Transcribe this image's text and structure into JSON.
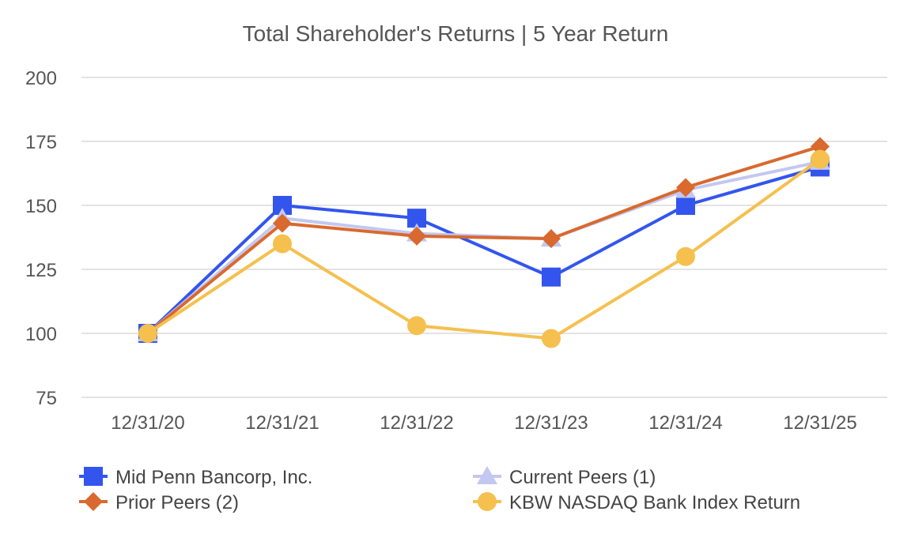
{
  "chart_data": {
    "type": "line",
    "title": "Total Shareholder's Returns | 5 Year Return",
    "categories": [
      "12/31/20",
      "12/31/21",
      "12/31/22",
      "12/31/23",
      "12/31/24",
      "12/31/25"
    ],
    "ylim": [
      75,
      200
    ],
    "yticks": [
      "75",
      "100",
      "125",
      "150",
      "175",
      "200"
    ],
    "grid": true,
    "legend_position": "bottom",
    "series": [
      {
        "name": "Mid Penn Bancorp, Inc.",
        "values": [
          100,
          150,
          145,
          122,
          150,
          165
        ],
        "color": "#3355ee",
        "marker": "square"
      },
      {
        "name": "Current Peers (1)",
        "values": [
          100,
          145,
          139,
          137,
          156,
          167
        ],
        "color": "#c2c8f0",
        "marker": "triangle"
      },
      {
        "name": "Prior Peers (2)",
        "values": [
          100,
          143,
          138,
          137,
          157,
          173
        ],
        "color": "#d9692e",
        "marker": "diamond"
      },
      {
        "name": "KBW NASDAQ Bank Index Return",
        "values": [
          100,
          135,
          103,
          98,
          130,
          168
        ],
        "color": "#f5c04e",
        "marker": "circle"
      }
    ]
  }
}
